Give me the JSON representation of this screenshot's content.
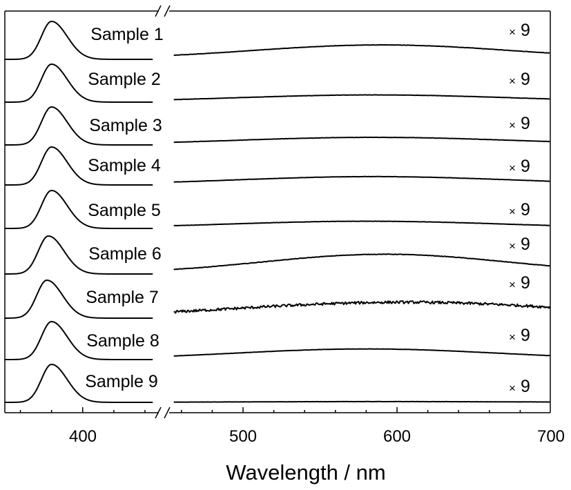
{
  "chart_data": {
    "type": "line",
    "xlabel": "Wavelength / nm",
    "ylabel": "",
    "title": "",
    "axis_break": [
      445,
      455
    ],
    "x_ticks": [
      "400",
      "500",
      "600",
      "700"
    ],
    "xlim": [
      350,
      700
    ],
    "multiplier_text": "9",
    "multiplier_sign": "×",
    "series": [
      {
        "name": "Sample 1",
        "uv_peak_nm": 380,
        "vis_peak_nm": 590,
        "vis_amp": 0.38,
        "vis_width": 85,
        "noise": 0.004,
        "vis_start": 0.12
      },
      {
        "name": "Sample 2",
        "uv_peak_nm": 380,
        "vis_peak_nm": 585,
        "vis_amp": 0.19,
        "vis_width": 90,
        "noise": 0.003,
        "vis_start": 0.0
      },
      {
        "name": "Sample 3",
        "uv_peak_nm": 380,
        "vis_peak_nm": 585,
        "vis_amp": 0.2,
        "vis_width": 90,
        "noise": 0.003,
        "vis_start": 0.0
      },
      {
        "name": "Sample 4",
        "uv_peak_nm": 380,
        "vis_peak_nm": 585,
        "vis_amp": 0.22,
        "vis_width": 90,
        "noise": 0.003,
        "vis_start": 0.0
      },
      {
        "name": "Sample 5",
        "uv_peak_nm": 380,
        "vis_peak_nm": 580,
        "vis_amp": 0.19,
        "vis_width": 90,
        "noise": 0.003,
        "vis_start": 0.0
      },
      {
        "name": "Sample 6",
        "uv_peak_nm": 378,
        "vis_peak_nm": 592,
        "vis_amp": 0.52,
        "vis_width": 80,
        "noise": 0.006,
        "vis_start": 0.0
      },
      {
        "name": "Sample 7",
        "uv_peak_nm": 377,
        "vis_peak_nm": 605,
        "vis_amp": 0.42,
        "vis_width": 110,
        "noise": 0.035,
        "vis_start": 0.0
      },
      {
        "name": "Sample 8",
        "uv_peak_nm": 380,
        "vis_peak_nm": 580,
        "vis_amp": 0.28,
        "vis_width": 85,
        "noise": 0.003,
        "vis_start": 0.0
      },
      {
        "name": "Sample 9",
        "uv_peak_nm": 380,
        "vis_peak_nm": 590,
        "vis_amp": 0.02,
        "vis_width": 90,
        "noise": 0.002,
        "vis_start": 0.0
      }
    ]
  }
}
